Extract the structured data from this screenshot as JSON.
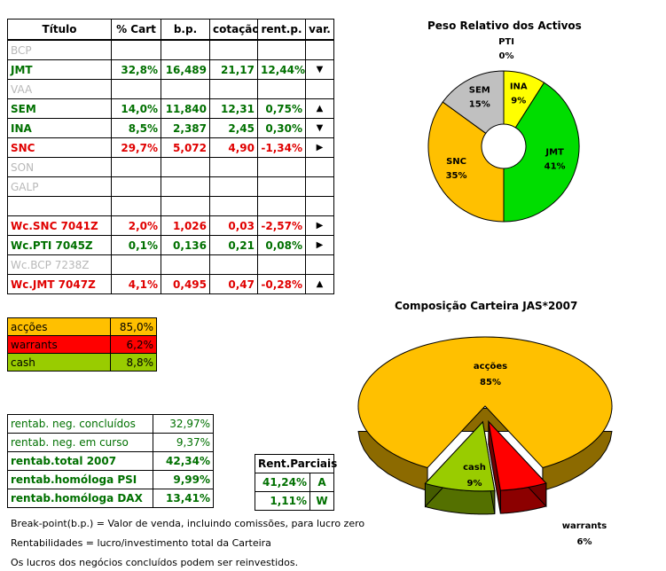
{
  "holdings": {
    "headers": [
      "Título",
      "% Cart",
      "b.p.",
      "cotação",
      "rent.p.",
      "var."
    ],
    "rows": [
      {
        "name": "BCP",
        "cart": "",
        "bp": "",
        "cot": "",
        "rent": "",
        "var": "",
        "style": "grey"
      },
      {
        "name": "JMT",
        "cart": "32,8%",
        "bp": "16,489",
        "cot": "21,17",
        "rent": "12,44%",
        "var": "▼",
        "style": "green"
      },
      {
        "name": "VAA",
        "cart": "",
        "bp": "",
        "cot": "",
        "rent": "",
        "var": "",
        "style": "grey"
      },
      {
        "name": "SEM",
        "cart": "14,0%",
        "bp": "11,840",
        "cot": "12,31",
        "rent": "0,75%",
        "var": "▲",
        "style": "green"
      },
      {
        "name": "INA",
        "cart": "8,5%",
        "bp": "2,387",
        "cot": "2,45",
        "rent": "0,30%",
        "var": "▼",
        "style": "green"
      },
      {
        "name": "SNC",
        "cart": "29,7%",
        "bp": "5,072",
        "cot": "4,90",
        "rent": "-1,34%",
        "var": "▶",
        "style": "red"
      },
      {
        "name": "SON",
        "cart": "",
        "bp": "",
        "cot": "",
        "rent": "",
        "var": "",
        "style": "grey"
      },
      {
        "name": "GALP",
        "cart": "",
        "bp": "",
        "cot": "",
        "rent": "",
        "var": "",
        "style": "grey"
      },
      {
        "name": "",
        "cart": "",
        "bp": "",
        "cot": "",
        "rent": "",
        "var": "",
        "style": "grey"
      },
      {
        "name": "Wc.SNC 7041Z",
        "cart": "2,0%",
        "bp": "1,026",
        "cot": "0,03",
        "rent": "-2,57%",
        "var": "▶",
        "style": "red"
      },
      {
        "name": "Wc.PTI 7045Z",
        "cart": "0,1%",
        "bp": "0,136",
        "cot": "0,21",
        "rent": "0,08%",
        "var": "▶",
        "style": "green"
      },
      {
        "name": "Wc.BCP 7238Z",
        "cart": "",
        "bp": "",
        "cot": "",
        "rent": "",
        "var": "",
        "style": "grey"
      },
      {
        "name": "Wc.JMT 7047Z",
        "cart": "4,1%",
        "bp": "0,495",
        "cot": "0,47",
        "rent": "-0,28%",
        "var": "▲",
        "style": "red"
      }
    ]
  },
  "allocation": [
    {
      "label": "acções",
      "value": "85,0%",
      "color": "#ffc000"
    },
    {
      "label": "warrants",
      "value": "6,2%",
      "color": "#ff0000"
    },
    {
      "label": "cash",
      "value": "8,8%",
      "color": "#99cc00"
    }
  ],
  "returns": [
    {
      "label": "rentab. neg. concluídos",
      "value": "32,97%",
      "bold": false
    },
    {
      "label": "rentab. neg. em curso",
      "value": "9,37%",
      "bold": false
    },
    {
      "label": "rentab.total 2007",
      "value": "42,34%",
      "bold": true
    },
    {
      "label": "rentab.homóloga PSI",
      "value": "9,99%",
      "bold": true
    },
    {
      "label": "rentab.homóloga DAX",
      "value": "13,41%",
      "bold": true
    }
  ],
  "parciais": {
    "header": "Rent.Parciais",
    "rows": [
      {
        "value": "41,24%",
        "sign": "A"
      },
      {
        "value": "1,11%",
        "sign": "W"
      }
    ]
  },
  "notes": [
    "Break-point(b.p.) = Valor de venda, incluindo comissões, para lucro zero",
    "Rentabilidades = lucro/investimento total da Carteira",
    "Os lucros dos negócios concluídos podem ser reinvestidos."
  ],
  "chart_data": [
    {
      "type": "pie",
      "title": "Peso Relativo dos Activos",
      "style": "doughnut",
      "slices": [
        {
          "label": "PTI",
          "value": 0,
          "display": "0%",
          "color": "#ffffff"
        },
        {
          "label": "INA",
          "value": 9,
          "display": "9%",
          "color": "#ffff00"
        },
        {
          "label": "JMT",
          "value": 41,
          "display": "41%",
          "color": "#00dd00"
        },
        {
          "label": "SNC",
          "value": 35,
          "display": "35%",
          "color": "#ffc000"
        },
        {
          "label": "SEM",
          "value": 15,
          "display": "15%",
          "color": "#c0c0c0"
        }
      ]
    },
    {
      "type": "pie",
      "title": "Composição Carteira JAS*2007",
      "style": "3d-exploded",
      "slices": [
        {
          "label": "acções",
          "value": 85,
          "display": "85%",
          "color": "#ffc000"
        },
        {
          "label": "warrants",
          "value": 6,
          "display": "6%",
          "color": "#ff0000"
        },
        {
          "label": "cash",
          "value": 9,
          "display": "9%",
          "color": "#99cc00"
        }
      ]
    }
  ]
}
